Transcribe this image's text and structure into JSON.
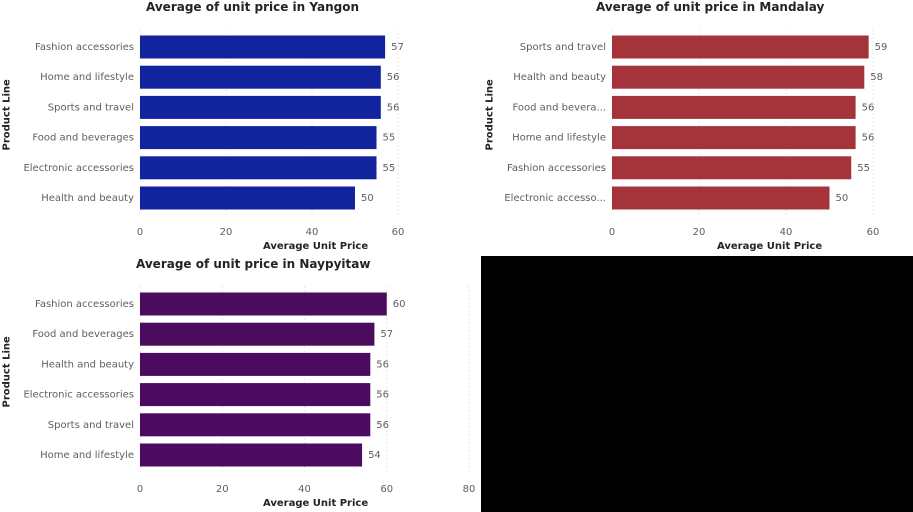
{
  "chart_data": [
    {
      "type": "bar",
      "orientation": "horizontal",
      "title": "Average of unit price in Yangon",
      "xlabel": "Average Unit Price",
      "ylabel": "Product Line",
      "categories": [
        "Fashion accessories",
        "Home and lifestyle",
        "Sports and travel",
        "Food and beverages",
        "Electronic accessories",
        "Health and beauty"
      ],
      "values": [
        57,
        56,
        56,
        55,
        55,
        50
      ],
      "data_labels": [
        "57",
        "56",
        "56",
        "55",
        "55",
        "50"
      ],
      "xlim": [
        0,
        60
      ],
      "xticks": [
        0,
        20,
        40,
        60
      ],
      "color": "#12239E",
      "grid": "vertical dotted"
    },
    {
      "type": "bar",
      "orientation": "horizontal",
      "title": "Average of unit price in Mandalay",
      "xlabel": "Average Unit Price",
      "ylabel": "Product Line",
      "categories": [
        "Sports and travel",
        "Health and beauty",
        "Food and bevera...",
        "Home and lifestyle",
        "Fashion accessories",
        "Electronic accesso..."
      ],
      "values": [
        59,
        58,
        56,
        56,
        55,
        50
      ],
      "data_labels": [
        "59",
        "58",
        "56",
        "56",
        "55",
        "50"
      ],
      "xlim": [
        0,
        60
      ],
      "xticks": [
        0,
        20,
        40,
        60
      ],
      "color": "#A4343A",
      "grid": "vertical dotted"
    },
    {
      "type": "bar",
      "orientation": "horizontal",
      "title": "Average of unit price in Naypyitaw",
      "xlabel": "Average Unit Price",
      "ylabel": "Product Line",
      "categories": [
        "Fashion accessories",
        "Food and beverages",
        "Health and beauty",
        "Electronic accessories",
        "Sports and travel",
        "Home and lifestyle"
      ],
      "values": [
        60,
        57,
        56,
        56,
        56,
        54
      ],
      "data_labels": [
        "60",
        "57",
        "56",
        "56",
        "56",
        "54"
      ],
      "xlim": [
        0,
        80
      ],
      "xticks": [
        0,
        20,
        40,
        60,
        80
      ],
      "color": "#4B0B5E",
      "grid": "vertical dotted"
    }
  ]
}
